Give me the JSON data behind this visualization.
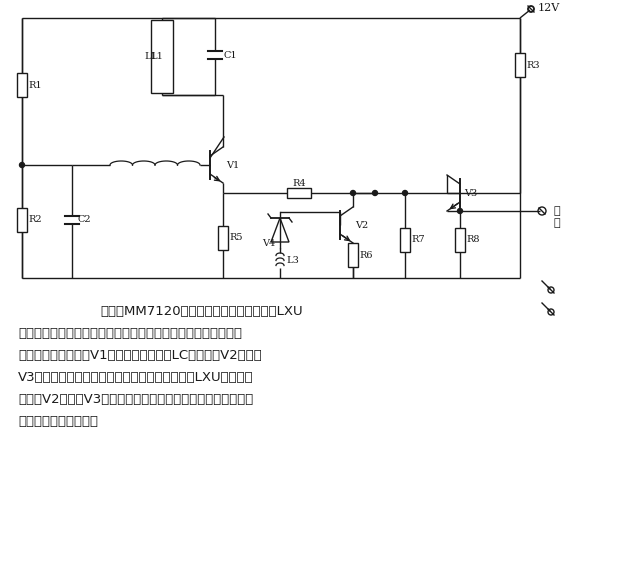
{
  "bg_color": "#ffffff",
  "line_color": "#1a1a1a",
  "text_color": "#1a1a1a",
  "fig_width": 6.32,
  "fig_height": 5.63,
  "dpi": 100,
  "description_lines": [
    "所示为MM7120型平面磨床无触点行程开关LXU",
    "的原理图。从图中可以看出，电路由振荡器、放大器和射极跟随",
    "器三级组成，三极管V1、电感、电容组成LC振荡器。V2导通时",
    "V3截止，输出电压为零。当工作台的机械块通过LXU时，振荡",
    "停止，V2截止，V3导通，有电压输出，晶闸管导通，电动机转",
    "动，工作台横向进给。"
  ]
}
